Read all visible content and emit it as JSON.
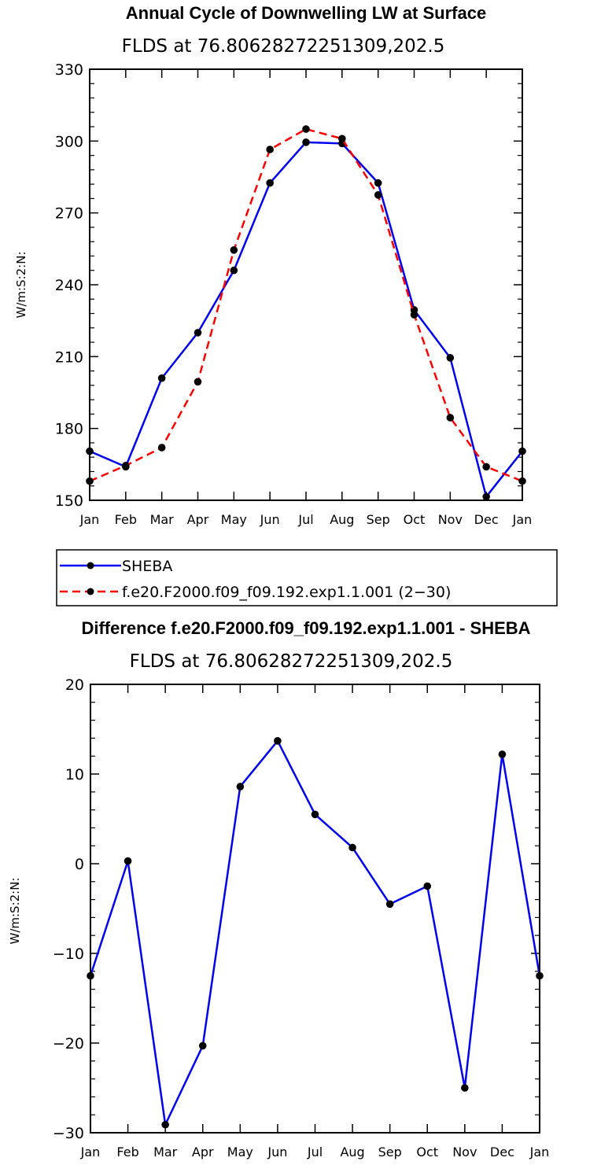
{
  "chart_data": [
    {
      "type": "line",
      "title": "Annual Cycle of Downwelling LW at Surface",
      "subtitle": "FLDS at 76.80628272251309,202.5",
      "xlabel": "",
      "ylabel": "W/m:S:2:N:",
      "categories": [
        "Jan",
        "Feb",
        "Mar",
        "Apr",
        "May",
        "Jun",
        "Jul",
        "Aug",
        "Sep",
        "Oct",
        "Nov",
        "Dec",
        "Jan"
      ],
      "ylim": [
        150,
        330
      ],
      "yticks": [
        150,
        180,
        210,
        240,
        270,
        300,
        330
      ],
      "legend_position": "below",
      "series": [
        {
          "name": "SHEBA",
          "color": "#0000ee",
          "dash": "solid",
          "values": [
            170.5,
            164,
            201,
            220,
            246,
            282.5,
            299.5,
            299,
            282.5,
            229.5,
            209.5,
            151.5,
            170.5
          ]
        },
        {
          "name": "f.e20.F2000.f09_f09.192.exp1.1.001 (2−30)",
          "color": "#ff0000",
          "dash": "dashed",
          "values": [
            158,
            164.5,
            172,
            199.5,
            254.5,
            296.5,
            305,
            301,
            277.5,
            227.5,
            184.5,
            164,
            158
          ]
        }
      ]
    },
    {
      "type": "line",
      "title": "Difference f.e20.F2000.f09_f09.192.exp1.1.001 - SHEBA",
      "subtitle": "FLDS at 76.80628272251309,202.5",
      "xlabel": "",
      "ylabel": "W/m:S:2:N:",
      "categories": [
        "Jan",
        "Feb",
        "Mar",
        "Apr",
        "May",
        "Jun",
        "Jul",
        "Aug",
        "Sep",
        "Oct",
        "Nov",
        "Dec",
        "Jan"
      ],
      "ylim": [
        -30,
        20
      ],
      "yticks": [
        -30,
        -20,
        -10,
        0,
        10,
        20
      ],
      "series": [
        {
          "color": "#0000ee",
          "dash": "solid",
          "values": [
            -12.5,
            0.3,
            -29.1,
            -20.3,
            8.6,
            13.7,
            5.5,
            1.8,
            -4.5,
            -2.5,
            -25.0,
            12.2,
            -12.5
          ]
        }
      ]
    }
  ]
}
